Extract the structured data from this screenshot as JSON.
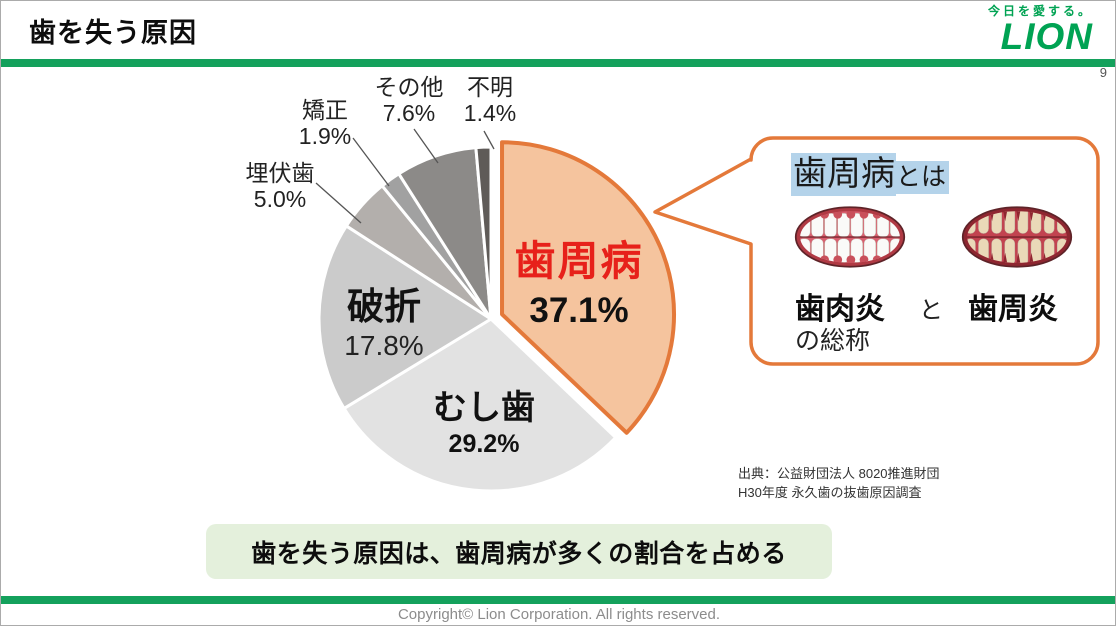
{
  "header": {
    "title": "歯を失う原因",
    "logo_tagline": "今日を愛する。",
    "logo_text": "LION",
    "page_number": "9"
  },
  "chart_data": {
    "type": "pie",
    "title": "",
    "unit": "%",
    "direction": "clockwise",
    "start_angle_deg": 0,
    "slices": [
      {
        "label": "歯周病",
        "value": 37.1,
        "pct_label": "37.1%",
        "color": "#F5C49E",
        "border": "#E4793A",
        "exploded": true,
        "label_color": "#E7211A"
      },
      {
        "label": "むし歯",
        "value": 29.2,
        "pct_label": "29.2%",
        "color": "#E2E2E2"
      },
      {
        "label": "破折",
        "value": 17.8,
        "pct_label": "17.8%",
        "color": "#CBCBCB"
      },
      {
        "label": "埋伏歯",
        "value": 5.0,
        "pct_label": "5.0%",
        "color": "#B3AFAC"
      },
      {
        "label": "矯正",
        "value": 1.9,
        "pct_label": "1.9%",
        "color": "#A1A1A1"
      },
      {
        "label": "その他",
        "value": 7.6,
        "pct_label": "7.6%",
        "color": "#8C8A88"
      },
      {
        "label": "不明",
        "value": 1.4,
        "pct_label": "1.4%",
        "color": "#5F5B58"
      }
    ]
  },
  "callout": {
    "title_main": "歯周病",
    "title_suffix": "とは",
    "highlight_color": "#B4D3EA",
    "border_color": "#E4793A",
    "images": [
      {
        "name": "gingivitis-illustration",
        "label": "歯肉炎",
        "style": "gingivitis",
        "gum_color": "#D96070",
        "tooth_color": "#FAFAF8",
        "rim_color": "#B03A44"
      },
      {
        "name": "periodontitis-illustration",
        "label": "歯周炎",
        "style": "periodontitis",
        "gum_color": "#C24350",
        "tooth_color": "#EAD9B8",
        "rim_color": "#8E2630"
      }
    ],
    "connector": "と",
    "footer": "の総称"
  },
  "source": {
    "line1": "出典：公益財団法人 8020推進財団",
    "line2": "H30年度 永久歯の抜歯原因調査"
  },
  "banner": {
    "text": "歯を失う原因は、歯周病が多くの割合を占める",
    "bg": "#E4F0DC"
  },
  "footer": {
    "copyright": "Copyright© Lion Corporation. All rights reserved."
  },
  "colors": {
    "brand_green": "#14A15C",
    "logo_green": "#00A353",
    "accent_orange": "#E4793A",
    "highlight_red": "#E7211A"
  }
}
